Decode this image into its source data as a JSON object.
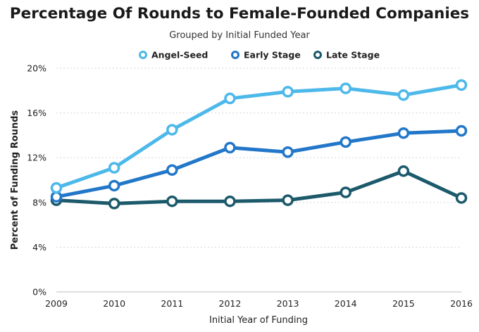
{
  "chart_data": {
    "type": "line",
    "title": "Percentage Of Rounds to Female-Founded Companies",
    "subtitle": "Grouped by Initial Funded Year",
    "xlabel": "Initial Year of Funding",
    "ylabel": "Percent of Funding Rounds",
    "x": [
      "2009",
      "2010",
      "2011",
      "2012",
      "2013",
      "2014",
      "2015",
      "2016"
    ],
    "ylim": [
      0,
      20
    ],
    "yticks": [
      0,
      4,
      8,
      12,
      16,
      20
    ],
    "ytick_labels": [
      "0%",
      "4%",
      "8%",
      "12%",
      "16%",
      "20%"
    ],
    "grid": true,
    "legend_position": "top-center",
    "series": [
      {
        "name": "Angel-Seed",
        "color": "#4db8ea",
        "values": [
          9.3,
          11.1,
          14.5,
          17.3,
          17.9,
          18.2,
          17.6,
          18.5
        ]
      },
      {
        "name": "Early Stage",
        "color": "#2277c9",
        "values": [
          8.5,
          9.5,
          10.9,
          12.9,
          12.5,
          13.4,
          14.2,
          14.4
        ]
      },
      {
        "name": "Late Stage",
        "color": "#1c5a6b",
        "values": [
          8.2,
          7.9,
          8.1,
          8.1,
          8.2,
          8.9,
          10.8,
          8.4
        ]
      }
    ]
  }
}
